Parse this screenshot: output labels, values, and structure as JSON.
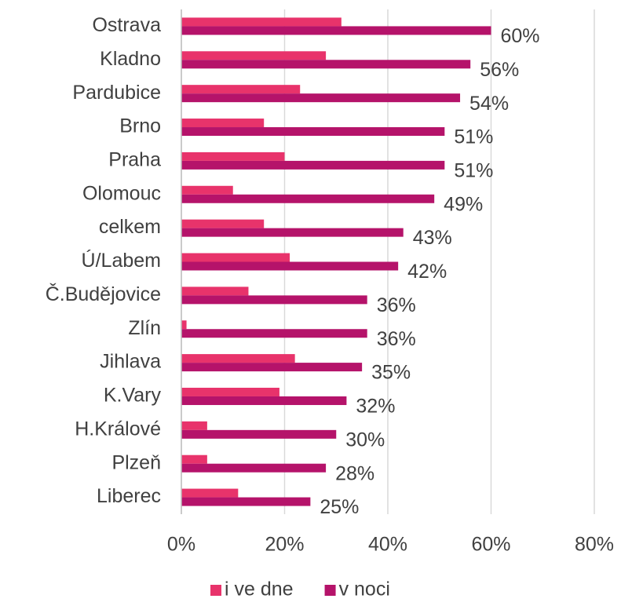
{
  "chart_data": {
    "type": "hbar",
    "categories": [
      "Ostrava",
      "Kladno",
      "Pardubice",
      "Brno",
      "Praha",
      "Olomouc",
      "celkem",
      "Ú/Labem",
      "Č.Budějovice",
      "Zlín",
      "Jihlava",
      "K.Vary",
      "H.Králové",
      "Plzeň",
      "Liberec"
    ],
    "series": [
      {
        "name": "i ve dne",
        "color": "#e8336b",
        "values": [
          31,
          28,
          23,
          16,
          20,
          10,
          16,
          21,
          13,
          1,
          22,
          19,
          5,
          5,
          11
        ]
      },
      {
        "name": "v noci",
        "color": "#b5136a",
        "values": [
          60,
          56,
          54,
          51,
          51,
          49,
          43,
          42,
          36,
          36,
          35,
          32,
          30,
          28,
          25
        ],
        "value_labels": [
          "60%",
          "56%",
          "54%",
          "51%",
          "51%",
          "49%",
          "43%",
          "42%",
          "36%",
          "36%",
          "35%",
          "32%",
          "30%",
          "28%",
          "25%"
        ]
      }
    ],
    "xlim": [
      0,
      80
    ],
    "xticks": [
      {
        "value": 0,
        "label": "0%"
      },
      {
        "value": 20,
        "label": "20%"
      },
      {
        "value": 40,
        "label": "40%"
      },
      {
        "value": 60,
        "label": "60%"
      },
      {
        "value": 80,
        "label": "80%"
      }
    ],
    "grid": true,
    "legend": "bottom"
  }
}
